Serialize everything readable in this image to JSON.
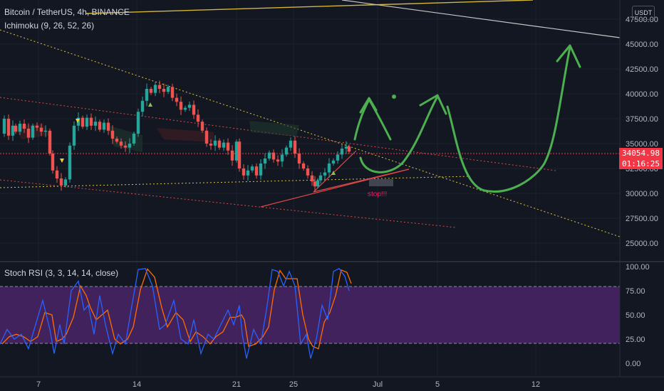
{
  "header": {
    "symbol_title": "Bitcoin / TetherUS, 4h, BINANCE",
    "indicator_ichimoku": "Ichimoku (9, 26, 52, 26)",
    "indicator_stoch": "Stoch RSI (3, 3, 14, 14, close)",
    "currency": "USDT"
  },
  "price_axis": {
    "ticks": [
      "47500.00",
      "45000.00",
      "42500.00",
      "40000.00",
      "37500.00",
      "35000.00",
      "32500.00",
      "30000.00",
      "27500.00",
      "25000.00"
    ],
    "current_price": "34054.98",
    "countdown": "01:16:25"
  },
  "stoch_axis": {
    "ticks": [
      "100.00",
      "75.00",
      "50.00",
      "25.00",
      "0.00"
    ]
  },
  "time_axis": {
    "ticks": [
      "7",
      "14",
      "21",
      "25",
      "Jul",
      "5",
      "12"
    ]
  },
  "annotations": {
    "stop_label": "stop!!!"
  },
  "colors": {
    "background": "#131722",
    "up_candle": "#26a69a",
    "down_candle": "#ef5350",
    "drawing_green": "#4caf50",
    "price_line": "#f23645",
    "stoch_k": "#2962ff",
    "stoch_d": "#ff6d00",
    "stoch_band": "#7e57c2"
  },
  "chart_data": {
    "type": "candlestick",
    "symbol": "Bitcoin / TetherUS",
    "interval": "4h",
    "exchange": "BINANCE",
    "y_range": [
      24000,
      48500
    ],
    "current_price": 34054.98,
    "close_path": [
      [
        0,
        36000
      ],
      [
        6,
        37500
      ],
      [
        12,
        35800
      ],
      [
        18,
        36800
      ],
      [
        22,
        36200
      ],
      [
        28,
        37000
      ],
      [
        34,
        36500
      ],
      [
        40,
        35600
      ],
      [
        46,
        36800
      ],
      [
        52,
        36600
      ],
      [
        58,
        36200
      ],
      [
        64,
        36300
      ],
      [
        70,
        34000
      ],
      [
        74,
        32300
      ],
      [
        80,
        31500
      ],
      [
        86,
        30800
      ],
      [
        92,
        31400
      ],
      [
        98,
        34800
      ],
      [
        104,
        36800
      ],
      [
        110,
        37600
      ],
      [
        116,
        36700
      ],
      [
        122,
        37600
      ],
      [
        128,
        36800
      ],
      [
        134,
        37200
      ],
      [
        140,
        36400
      ],
      [
        146,
        37100
      ],
      [
        152,
        36300
      ],
      [
        158,
        35500
      ],
      [
        164,
        35200
      ],
      [
        170,
        34800
      ],
      [
        176,
        34600
      ],
      [
        182,
        35000
      ],
      [
        188,
        36000
      ],
      [
        194,
        38200
      ],
      [
        200,
        39300
      ],
      [
        206,
        40500
      ],
      [
        212,
        40100
      ],
      [
        218,
        40900
      ],
      [
        224,
        40500
      ],
      [
        230,
        40200
      ],
      [
        236,
        40700
      ],
      [
        242,
        39600
      ],
      [
        248,
        39200
      ],
      [
        254,
        38400
      ],
      [
        260,
        38600
      ],
      [
        266,
        38900
      ],
      [
        272,
        37900
      ],
      [
        278,
        37200
      ],
      [
        284,
        36300
      ],
      [
        290,
        35000
      ],
      [
        296,
        34800
      ],
      [
        302,
        35300
      ],
      [
        308,
        34600
      ],
      [
        314,
        35100
      ],
      [
        320,
        34300
      ],
      [
        326,
        33300
      ],
      [
        332,
        35200
      ],
      [
        336,
        32500
      ],
      [
        342,
        31800
      ],
      [
        348,
        32300
      ],
      [
        354,
        32700
      ],
      [
        360,
        31800
      ],
      [
        366,
        33000
      ],
      [
        372,
        33500
      ],
      [
        378,
        34100
      ],
      [
        384,
        33400
      ],
      [
        390,
        33200
      ],
      [
        396,
        33900
      ],
      [
        402,
        34600
      ],
      [
        408,
        35300
      ],
      [
        414,
        34000
      ],
      [
        420,
        33000
      ],
      [
        426,
        32500
      ],
      [
        432,
        31800
      ],
      [
        438,
        31200
      ],
      [
        442,
        30700
      ],
      [
        446,
        31300
      ],
      [
        450,
        31800
      ],
      [
        456,
        32100
      ],
      [
        462,
        33000
      ],
      [
        468,
        33300
      ],
      [
        474,
        33900
      ],
      [
        480,
        34500
      ],
      [
        486,
        34700
      ],
      [
        490,
        34200
      ]
    ],
    "stoch_rsi_k": [
      [
        0,
        20
      ],
      [
        10,
        35
      ],
      [
        20,
        25
      ],
      [
        30,
        30
      ],
      [
        40,
        15
      ],
      [
        50,
        40
      ],
      [
        60,
        65
      ],
      [
        70,
        35
      ],
      [
        76,
        10
      ],
      [
        84,
        40
      ],
      [
        90,
        20
      ],
      [
        100,
        75
      ],
      [
        110,
        85
      ],
      [
        118,
        55
      ],
      [
        124,
        60
      ],
      [
        132,
        30
      ],
      [
        140,
        70
      ],
      [
        148,
        40
      ],
      [
        158,
        10
      ],
      [
        166,
        30
      ],
      [
        176,
        20
      ],
      [
        184,
        55
      ],
      [
        194,
        97
      ],
      [
        204,
        98
      ],
      [
        214,
        80
      ],
      [
        224,
        35
      ],
      [
        232,
        40
      ],
      [
        244,
        65
      ],
      [
        254,
        25
      ],
      [
        264,
        20
      ],
      [
        272,
        45
      ],
      [
        282,
        10
      ],
      [
        292,
        30
      ],
      [
        300,
        25
      ],
      [
        310,
        40
      ],
      [
        320,
        55
      ],
      [
        328,
        40
      ],
      [
        336,
        60
      ],
      [
        340,
        30
      ],
      [
        346,
        5
      ],
      [
        356,
        35
      ],
      [
        366,
        20
      ],
      [
        374,
        55
      ],
      [
        382,
        97
      ],
      [
        390,
        95
      ],
      [
        398,
        80
      ],
      [
        406,
        95
      ],
      [
        414,
        80
      ],
      [
        422,
        20
      ],
      [
        430,
        30
      ],
      [
        436,
        5
      ],
      [
        444,
        25
      ],
      [
        452,
        60
      ],
      [
        460,
        45
      ],
      [
        468,
        95
      ],
      [
        476,
        98
      ],
      [
        484,
        90
      ],
      [
        490,
        75
      ]
    ],
    "stoch_levels": [
      80,
      20
    ],
    "x_labels": [
      "7",
      "14",
      "21",
      "25",
      "Jul",
      "5",
      "12"
    ],
    "annotations": [
      "stop!!!"
    ]
  }
}
